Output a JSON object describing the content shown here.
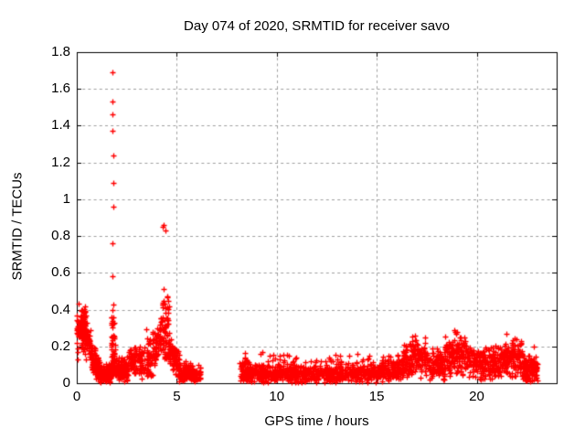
{
  "figure": {
    "title": "Day 074 of 2020, SRMTID for receiver savo",
    "xlabel": "GPS time / hours",
    "ylabel": "SRMTID / TECUs"
  },
  "colors": {
    "marker": "#ff0000",
    "grid": "#a0a0a0",
    "axis": "#000000",
    "background": "#ffffff",
    "text": "#000000"
  },
  "chart_data": {
    "type": "scatter",
    "title": "Day 074 of 2020, SRMTID for receiver savo",
    "xlabel": "GPS time / hours",
    "ylabel": "SRMTID / TECUs",
    "series_name": "SRMTID",
    "xlim": [
      0,
      24
    ],
    "ylim": [
      0,
      1.8
    ],
    "grid": true,
    "legend": "none",
    "x_ticks": [
      {
        "value": 0,
        "label": "0"
      },
      {
        "value": 5,
        "label": "5"
      },
      {
        "value": 10,
        "label": "10"
      },
      {
        "value": 15,
        "label": "15"
      },
      {
        "value": 20,
        "label": "20"
      }
    ],
    "y_ticks": [
      {
        "value": 0,
        "label": "0"
      },
      {
        "value": 0.2,
        "label": "0.2"
      },
      {
        "value": 0.4,
        "label": "0.4"
      },
      {
        "value": 0.6,
        "label": "0.6"
      },
      {
        "value": 0.8,
        "label": "0.8"
      },
      {
        "value": 1,
        "label": "1"
      },
      {
        "value": 1.2,
        "label": "1.2"
      },
      {
        "value": 1.4,
        "label": "1.4"
      },
      {
        "value": 1.6,
        "label": "1.6"
      },
      {
        "value": 1.8,
        "label": "1.8"
      }
    ],
    "marker": {
      "shape": "plus",
      "color": "#ff0000",
      "size": 7
    },
    "data_gaps_hours": [
      [
        6.2,
        8.15
      ],
      [
        23.05,
        24
      ]
    ],
    "seed": 20200074,
    "notable_points": [
      [
        0.0,
        0.37
      ],
      [
        0.0,
        0.3
      ],
      [
        0.0,
        0.22
      ],
      [
        0.03,
        0.17
      ],
      [
        0.06,
        0.13
      ],
      [
        1.79,
        1.69
      ],
      [
        1.79,
        1.53
      ],
      [
        1.8,
        1.46
      ],
      [
        1.8,
        1.37
      ],
      [
        1.82,
        1.24
      ],
      [
        1.82,
        1.09
      ],
      [
        1.81,
        0.96
      ],
      [
        1.8,
        0.76
      ],
      [
        1.8,
        0.58
      ],
      [
        1.82,
        0.43
      ],
      [
        1.76,
        0.4
      ],
      [
        4.33,
        0.86
      ],
      [
        4.3,
        0.85
      ],
      [
        4.42,
        0.83
      ],
      [
        4.36,
        0.51
      ],
      [
        4.36,
        0.45
      ],
      [
        4.43,
        0.41
      ],
      [
        9.2,
        0.16
      ],
      [
        9.27,
        0.17
      ],
      [
        12.2,
        0.12
      ],
      [
        12.6,
        0.14
      ],
      [
        13.6,
        0.15
      ],
      [
        14.3,
        0.13
      ],
      [
        16.9,
        0.26
      ],
      [
        18.9,
        0.29
      ],
      [
        19.0,
        0.28
      ],
      [
        21.5,
        0.27
      ],
      [
        22.0,
        0.24
      ],
      [
        22.85,
        0.2
      ]
    ],
    "clusters": [
      {
        "x0": 0.0,
        "x1": 0.45,
        "n": 100,
        "dist": "normal",
        "mean": 0.31,
        "sd": 0.055,
        "ymin": 0.17,
        "ymax": 0.44
      },
      {
        "x0": 0.3,
        "x1": 1.1,
        "n": 150,
        "dist": "trend",
        "y0": 0.3,
        "y1": 0.05,
        "sd": 0.045,
        "ymin": 0.01,
        "ymax": 0.4
      },
      {
        "x0": 1.0,
        "x1": 1.75,
        "n": 130,
        "dist": "normal",
        "mean": 0.05,
        "sd": 0.03,
        "ymin": 0.005,
        "ymax": 0.14
      },
      {
        "x0": 1.74,
        "x1": 1.9,
        "n": 55,
        "dist": "uniform",
        "ymin": 0.06,
        "ymax": 0.36
      },
      {
        "x0": 1.9,
        "x1": 2.6,
        "n": 110,
        "dist": "normal",
        "mean": 0.07,
        "sd": 0.035,
        "ymin": 0.01,
        "ymax": 0.17
      },
      {
        "x0": 2.6,
        "x1": 3.4,
        "n": 95,
        "dist": "normal",
        "mean": 0.12,
        "sd": 0.04,
        "ymin": 0.02,
        "ymax": 0.21
      },
      {
        "x0": 3.4,
        "x1": 4.28,
        "n": 110,
        "dist": "trend",
        "y0": 0.09,
        "y1": 0.27,
        "sd": 0.055,
        "ymin": 0.02,
        "ymax": 0.38
      },
      {
        "x0": 4.28,
        "x1": 4.6,
        "n": 60,
        "dist": "uniform",
        "ymin": 0.12,
        "ymax": 0.47
      },
      {
        "x0": 4.6,
        "x1": 5.15,
        "n": 85,
        "dist": "trend",
        "y0": 0.18,
        "y1": 0.08,
        "sd": 0.04,
        "ymin": 0.03,
        "ymax": 0.3
      },
      {
        "x0": 5.1,
        "x1": 6.2,
        "n": 150,
        "dist": "normal",
        "mean": 0.055,
        "sd": 0.025,
        "ymin": 0.01,
        "ymax": 0.12
      },
      {
        "x0": 8.15,
        "x1": 8.6,
        "n": 50,
        "dist": "normal",
        "mean": 0.08,
        "sd": 0.045,
        "ymin": 0.01,
        "ymax": 0.18
      },
      {
        "x0": 8.3,
        "x1": 15.2,
        "n": 700,
        "dist": "normal",
        "mean": 0.05,
        "sd": 0.028,
        "ymin": 0.005,
        "ymax": 0.13
      },
      {
        "x0": 8.6,
        "x1": 14.9,
        "n": 30,
        "dist": "uniform",
        "ymin": 0.1,
        "ymax": 0.16
      },
      {
        "x0": 15.2,
        "x1": 16.3,
        "n": 130,
        "dist": "normal",
        "mean": 0.07,
        "sd": 0.033,
        "ymin": 0.01,
        "ymax": 0.16
      },
      {
        "x0": 16.3,
        "x1": 17.6,
        "n": 160,
        "dist": "normal",
        "mean": 0.13,
        "sd": 0.05,
        "ymin": 0.02,
        "ymax": 0.26
      },
      {
        "x0": 17.6,
        "x1": 18.4,
        "n": 110,
        "dist": "normal",
        "mean": 0.09,
        "sd": 0.04,
        "ymin": 0.02,
        "ymax": 0.2
      },
      {
        "x0": 18.4,
        "x1": 19.5,
        "n": 150,
        "dist": "normal",
        "mean": 0.14,
        "sd": 0.05,
        "ymin": 0.03,
        "ymax": 0.29
      },
      {
        "x0": 19.5,
        "x1": 21.2,
        "n": 200,
        "dist": "normal",
        "mean": 0.11,
        "sd": 0.045,
        "ymin": 0.02,
        "ymax": 0.24
      },
      {
        "x0": 21.2,
        "x1": 22.3,
        "n": 140,
        "dist": "normal",
        "mean": 0.13,
        "sd": 0.05,
        "ymin": 0.02,
        "ymax": 0.27
      },
      {
        "x0": 22.3,
        "x1": 23.05,
        "n": 110,
        "dist": "normal",
        "mean": 0.07,
        "sd": 0.038,
        "ymin": 0.01,
        "ymax": 0.2
      }
    ]
  }
}
